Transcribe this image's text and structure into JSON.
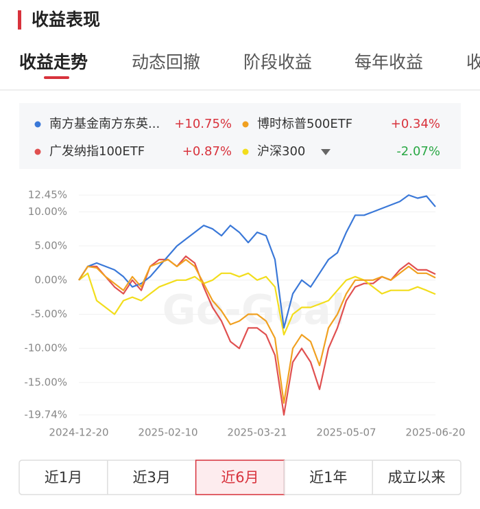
{
  "header": {
    "title": "收益表现"
  },
  "tabs": [
    "收益走势",
    "动态回撤",
    "阶段收益",
    "每年收益",
    "收"
  ],
  "watermark": "Go-Goal",
  "chart_data": {
    "type": "line",
    "categories": [
      "2024-12-20",
      null,
      null,
      null,
      null,
      null,
      null,
      null,
      null,
      null,
      "2025-02-10",
      null,
      null,
      null,
      null,
      null,
      null,
      null,
      null,
      null,
      "2025-03-21",
      null,
      null,
      null,
      null,
      null,
      null,
      null,
      null,
      null,
      "2025-05-07",
      null,
      null,
      null,
      null,
      null,
      null,
      null,
      null,
      null,
      "2025-06-20"
    ],
    "ylim": [
      -19.74,
      12.45
    ],
    "yticks": [
      {
        "value": 12.45,
        "label": "12.45%"
      },
      {
        "value": 10,
        "label": "10.00%"
      },
      {
        "value": 5,
        "label": "5.00%"
      },
      {
        "value": 0,
        "label": "0.00%"
      },
      {
        "value": -5,
        "label": "-5.00%"
      },
      {
        "value": -10,
        "label": "-10.00%"
      },
      {
        "value": -15,
        "label": "-15.00%"
      },
      {
        "value": -19.74,
        "label": "-19.74%"
      }
    ],
    "grid": true,
    "series": [
      {
        "name": "南方基金南方东英...",
        "color": "#3a78d8",
        "latest_label": "+10.75%",
        "values": [
          0,
          2,
          2.5,
          2,
          1.5,
          0.5,
          -1,
          -0.5,
          0.5,
          2,
          3.5,
          5,
          6,
          7,
          8,
          7.5,
          6.5,
          8,
          7,
          5.5,
          7,
          6.5,
          3,
          -7,
          -2,
          0,
          -1,
          1,
          3,
          4,
          7,
          9.5,
          9.5,
          10,
          10.5,
          11,
          11.5,
          12.45,
          12,
          12.3,
          10.75
        ]
      },
      {
        "name": "博时标普500ETF",
        "color": "#f0a020",
        "latest_label": "+0.34%",
        "values": [
          0,
          2,
          1.8,
          0.5,
          -0.5,
          -1.5,
          0.5,
          -1,
          2,
          2.5,
          3,
          2,
          3,
          2,
          -0.5,
          -3,
          -4.5,
          -6.5,
          -6,
          -5,
          -5,
          -6,
          -8.5,
          -18,
          -10,
          -8,
          -9,
          -12.5,
          -7,
          -5,
          -2,
          0,
          0,
          0,
          0.5,
          0,
          1,
          2,
          1,
          1,
          0.34
        ]
      },
      {
        "name": "广发纳指100ETF",
        "color": "#e05050",
        "latest_label": "+0.87%",
        "values": [
          0,
          2,
          2,
          0.5,
          -1,
          -2,
          0,
          -1.5,
          2,
          3,
          3,
          2,
          3.5,
          2.5,
          -1,
          -4,
          -6,
          -9,
          -10,
          -7,
          -7,
          -8,
          -11,
          -19.74,
          -12,
          -10,
          -12,
          -16,
          -10,
          -7,
          -3,
          -1,
          -0.5,
          -0.5,
          0.5,
          0,
          1.5,
          2.5,
          1.5,
          1.5,
          0.87
        ]
      },
      {
        "name": "沪深300",
        "color": "#f2dd1c",
        "latest_label": "-2.07%",
        "values": [
          0,
          1,
          -3,
          -4,
          -5,
          -3,
          -2.5,
          -3,
          -2,
          -1,
          -0.5,
          0,
          0,
          0.5,
          -0.5,
          0,
          1,
          1,
          0.5,
          1,
          0,
          0.5,
          -1,
          -8,
          -5,
          -4,
          -4,
          -3.5,
          -3,
          -1.5,
          0,
          0.5,
          0,
          -1,
          -2,
          -1.5,
          -1.5,
          -1.5,
          -1,
          -1.5,
          -2.07
        ]
      }
    ]
  },
  "ranges": [
    "近1月",
    "近3月",
    "近6月",
    "近1年",
    "成立以来"
  ]
}
